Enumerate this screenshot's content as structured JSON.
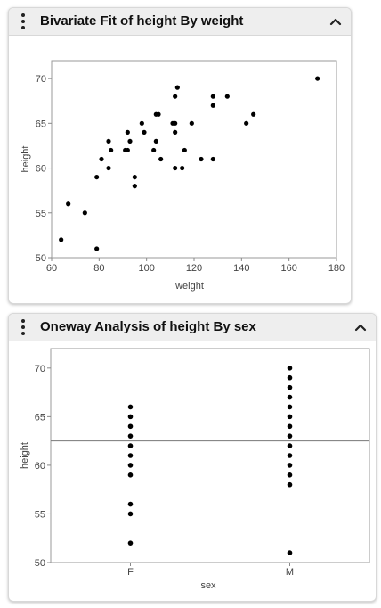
{
  "panels": [
    {
      "title": "Bivariate Fit of height By weight"
    },
    {
      "title": "Oneway Analysis of height By sex"
    }
  ],
  "chart_data": [
    {
      "type": "scatter",
      "title": "Bivariate Fit of height By weight",
      "xlabel": "weight",
      "ylabel": "height",
      "xlim": [
        60,
        180
      ],
      "ylim": [
        50,
        72
      ],
      "xticks": [
        60,
        80,
        100,
        120,
        140,
        160,
        180
      ],
      "yticks": [
        50,
        55,
        60,
        65,
        70
      ],
      "grid": false,
      "marker_color": "#000000",
      "points": [
        [
          64,
          52
        ],
        [
          67,
          56
        ],
        [
          74,
          55
        ],
        [
          79,
          51
        ],
        [
          79,
          59
        ],
        [
          81,
          61
        ],
        [
          84,
          60
        ],
        [
          84,
          63
        ],
        [
          85,
          62
        ],
        [
          91,
          62
        ],
        [
          92,
          64
        ],
        [
          92,
          62
        ],
        [
          93,
          63
        ],
        [
          95,
          58
        ],
        [
          95,
          59
        ],
        [
          98,
          65
        ],
        [
          99,
          64
        ],
        [
          103,
          62
        ],
        [
          104,
          66
        ],
        [
          104,
          63
        ],
        [
          105,
          66
        ],
        [
          106,
          61
        ],
        [
          111,
          65
        ],
        [
          112,
          68
        ],
        [
          112,
          65
        ],
        [
          112,
          64
        ],
        [
          112,
          60
        ],
        [
          113,
          69
        ],
        [
          115,
          60
        ],
        [
          116,
          62
        ],
        [
          119,
          65
        ],
        [
          123,
          61
        ],
        [
          128,
          68
        ],
        [
          128,
          67
        ],
        [
          128,
          61
        ],
        [
          134,
          68
        ],
        [
          142,
          65
        ],
        [
          145,
          66
        ],
        [
          172,
          70
        ]
      ]
    },
    {
      "type": "scatter",
      "title": "Oneway Analysis of height By sex",
      "xlabel": "sex",
      "ylabel": "height",
      "categories": [
        "F",
        "M"
      ],
      "ylim": [
        50,
        72
      ],
      "yticks": [
        50,
        55,
        60,
        65,
        70
      ],
      "grid": false,
      "reference_line_y": 62.5,
      "marker_color": "#000000",
      "groups": [
        {
          "category": "F",
          "values": [
            52,
            55,
            56,
            59,
            60,
            61,
            62,
            63,
            64,
            65,
            66
          ]
        },
        {
          "category": "M",
          "values": [
            51,
            58,
            59,
            60,
            61,
            62,
            63,
            64,
            65,
            66,
            67,
            68,
            69,
            70
          ]
        }
      ]
    }
  ]
}
